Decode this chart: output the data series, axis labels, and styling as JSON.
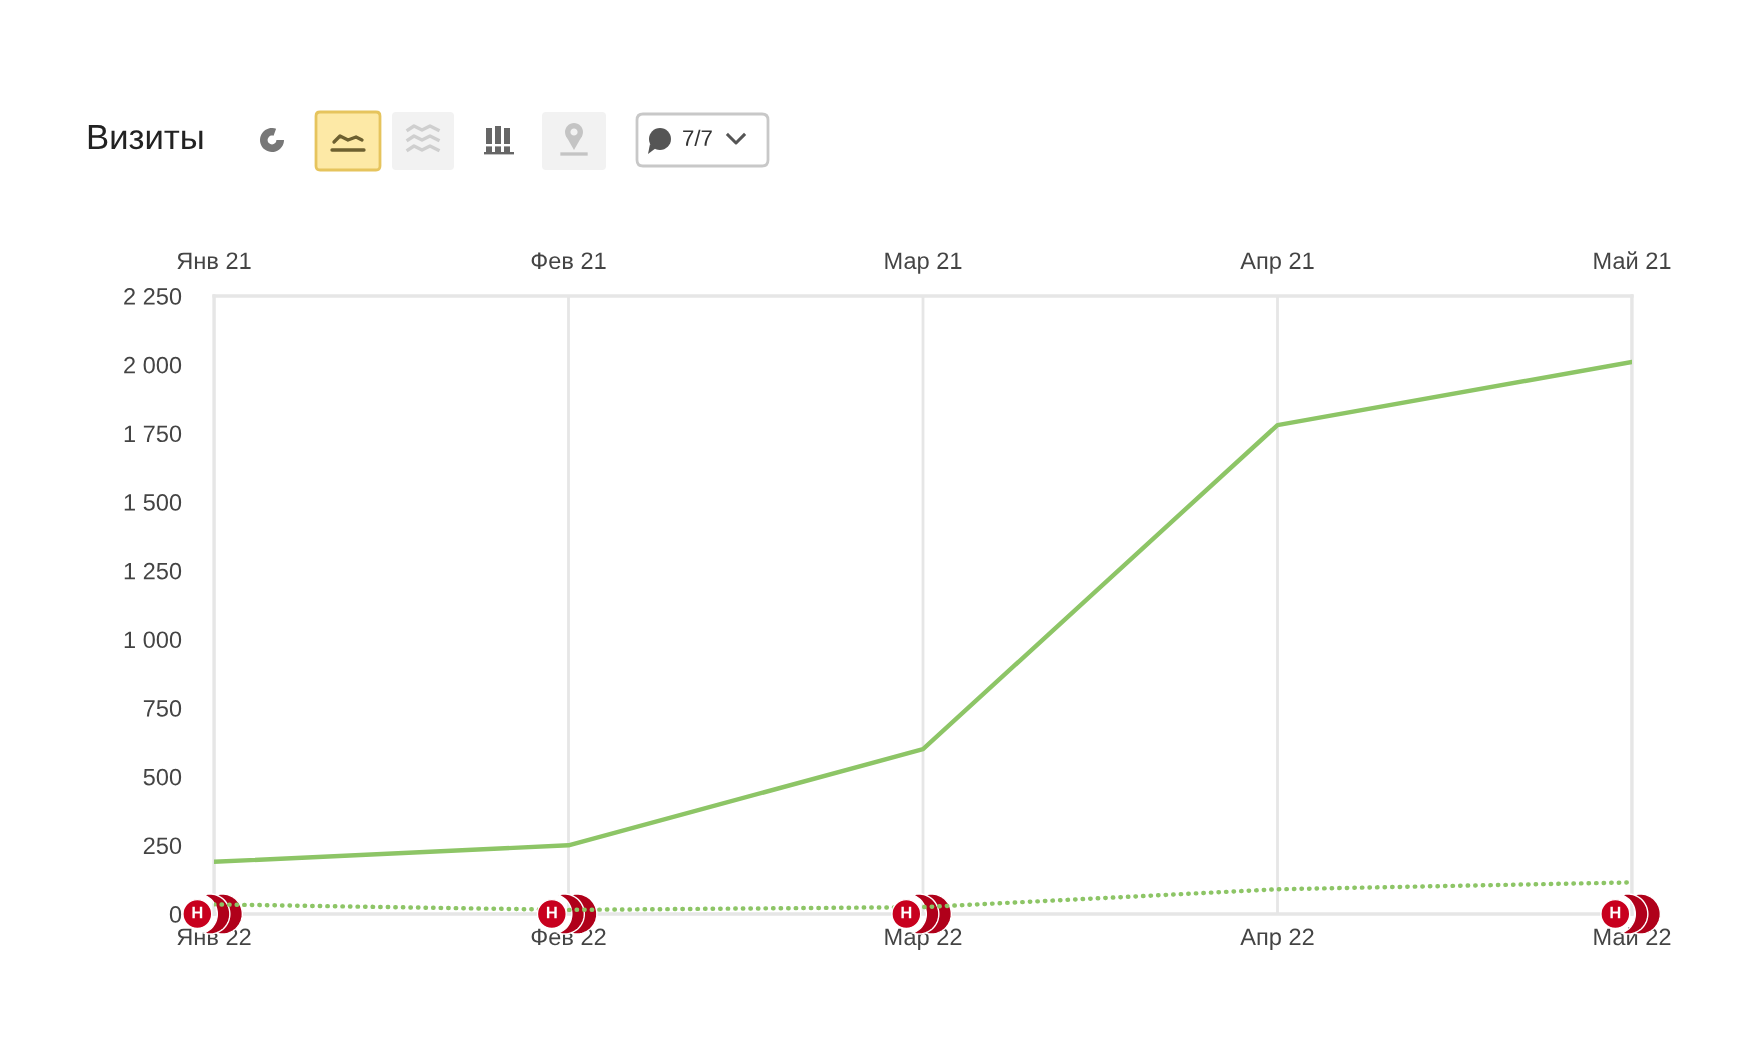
{
  "chart_data": {
    "type": "line",
    "title": "Визиты",
    "line_style": "solid",
    "grid": true,
    "categories": [
      "Янв 22",
      "Фев 22",
      "Мар 22",
      "Апр 22",
      "Май 22"
    ],
    "ylim": [
      0,
      2250
    ],
    "yticks": [
      0,
      250,
      500,
      750,
      {
        "value": 1000,
        "label": "1 000"
      },
      {
        "value": 1250,
        "label": "1 250"
      },
      {
        "value": 1500,
        "label": "1 500"
      },
      {
        "value": 1750,
        "label": "1 750"
      },
      {
        "value": 2000,
        "label": "2 000"
      },
      {
        "value": 2250,
        "label": "2 250"
      }
    ],
    "series": [
      {
        "color": "#8dc566",
        "values": [
          190,
          250,
          600,
          1780,
          2010
        ]
      },
      {
        "color": "#8dc566",
        "values": [
          35,
          15,
          25,
          90,
          115
        ],
        "line_style": "dotted"
      },
      {
        "type": "scatter",
        "color": "#c8001e",
        "marker": "circle",
        "x": [
          "Янв 22",
          "Фев 22",
          "Мар 22",
          "Май 22"
        ],
        "values": [
          0,
          0,
          0,
          0
        ],
        "value_labels": [
          "Н",
          "Н",
          "Н",
          "Н"
        ]
      }
    ],
    "annotations": [
      "7/7",
      "Янв 21",
      "Фев 21",
      "Мар 21",
      "Апр 21",
      "Май 21"
    ]
  }
}
